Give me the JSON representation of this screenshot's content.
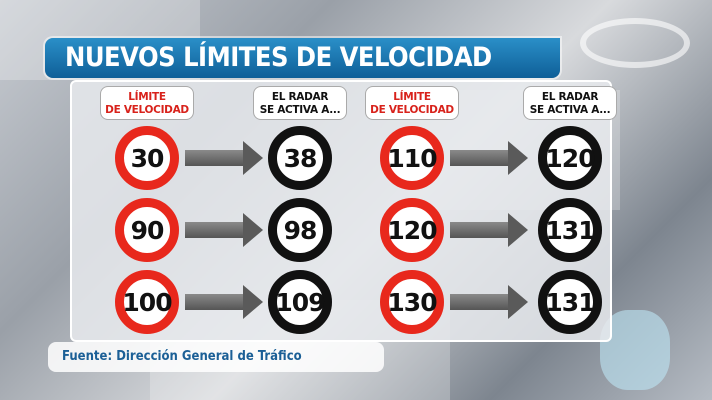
{
  "title": "NUEVOS LÍMITES DE VELOCIDAD",
  "headers": {
    "limit": "LÍMITE\nDE VELOCIDAD",
    "radar": "EL RADAR\nSE ACTIVA A..."
  },
  "columns": [
    {
      "rows": [
        {
          "limit": "30",
          "radar": "38"
        },
        {
          "limit": "90",
          "radar": "98"
        },
        {
          "limit": "100",
          "radar": "109"
        }
      ]
    },
    {
      "rows": [
        {
          "limit": "110",
          "radar": "120"
        },
        {
          "limit": "120",
          "radar": "131"
        },
        {
          "limit": "130",
          "radar": "131"
        }
      ]
    }
  ],
  "source": "Fuente: Dirección General de Tráfico",
  "colors": {
    "title_bg": "#1a74b0",
    "limit_ring": "#e8281c",
    "radar_ring": "#111111",
    "source_text": "#1b5f96"
  }
}
